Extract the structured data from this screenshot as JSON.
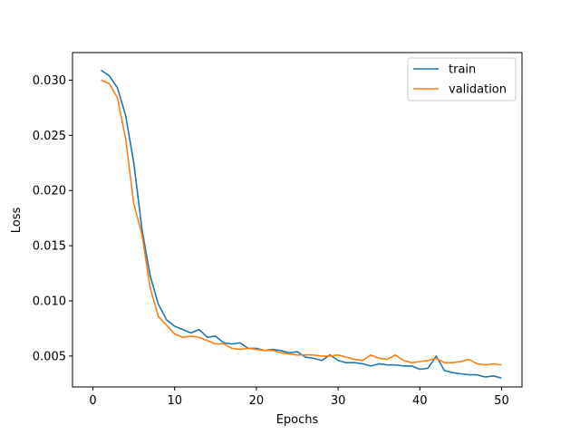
{
  "chart_data": {
    "type": "line",
    "xlabel": "Epochs",
    "ylabel": "Loss",
    "xlim": [
      -2.5,
      52.5
    ],
    "ylim": [
      0.0022,
      0.0325
    ],
    "xticks": [
      0,
      10,
      20,
      30,
      40,
      50
    ],
    "yticks": [
      0.005,
      0.01,
      0.015,
      0.02,
      0.025,
      0.03
    ],
    "ytick_labels": [
      "0.005",
      "0.010",
      "0.015",
      "0.020",
      "0.025",
      "0.030"
    ],
    "xtick_labels": [
      "0",
      "10",
      "20",
      "30",
      "40",
      "50"
    ],
    "grid": false,
    "legend_position": "top-right",
    "x": [
      1,
      2,
      3,
      4,
      5,
      6,
      7,
      8,
      9,
      10,
      11,
      12,
      13,
      14,
      15,
      16,
      17,
      18,
      19,
      20,
      21,
      22,
      23,
      24,
      25,
      26,
      27,
      28,
      29,
      30,
      31,
      32,
      33,
      34,
      35,
      36,
      37,
      38,
      39,
      40,
      41,
      42,
      43,
      44,
      45,
      46,
      47,
      48,
      49,
      50
    ],
    "series": [
      {
        "name": "train",
        "color": "#1f77b4",
        "values": [
          0.0309,
          0.0304,
          0.0293,
          0.0268,
          0.0225,
          0.0165,
          0.0123,
          0.0097,
          0.0083,
          0.0077,
          0.0074,
          0.0071,
          0.0074,
          0.0067,
          0.0068,
          0.0062,
          0.0061,
          0.0062,
          0.0057,
          0.0057,
          0.0055,
          0.0056,
          0.0055,
          0.0053,
          0.0054,
          0.0049,
          0.0048,
          0.0046,
          0.0051,
          0.0046,
          0.0044,
          0.0044,
          0.0043,
          0.0041,
          0.0043,
          0.0042,
          0.0042,
          0.0041,
          0.0041,
          0.0038,
          0.0039,
          0.005,
          0.0037,
          0.0035,
          0.0034,
          0.0033,
          0.0033,
          0.0031,
          0.0032,
          0.003
        ]
      },
      {
        "name": "validation",
        "color": "#ff7f0e",
        "values": [
          0.03,
          0.0297,
          0.0284,
          0.0247,
          0.0188,
          0.016,
          0.0112,
          0.0086,
          0.0078,
          0.007,
          0.0067,
          0.0068,
          0.0067,
          0.0064,
          0.0061,
          0.0061,
          0.0057,
          0.0056,
          0.0057,
          0.0056,
          0.0055,
          0.0055,
          0.0053,
          0.0052,
          0.0051,
          0.0051,
          0.0051,
          0.005,
          0.005,
          0.0051,
          0.0049,
          0.0047,
          0.0046,
          0.0051,
          0.0048,
          0.0047,
          0.0051,
          0.0046,
          0.0044,
          0.0045,
          0.0046,
          0.0048,
          0.0044,
          0.0044,
          0.0045,
          0.0047,
          0.0043,
          0.0042,
          0.0043,
          0.0042
        ]
      }
    ]
  }
}
